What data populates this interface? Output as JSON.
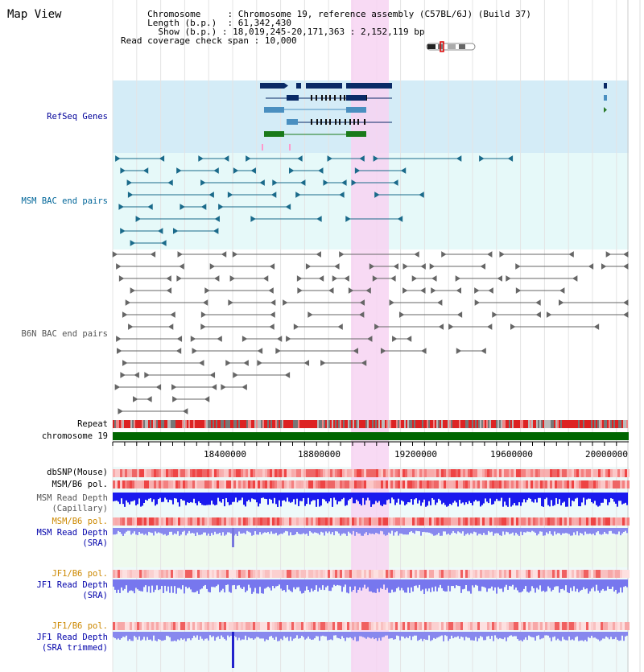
{
  "header": {
    "title": "Map View",
    "chromosome_label": "Chromosome",
    "chromosome_value": "Chromosome 19, reference assembly (C57BL/6J) (Build 37)",
    "length_label": "Length (b.p.)",
    "length_value": "61,342,430",
    "show_label": "Show (b.p.)",
    "show_value": "18,019,245-20,171,363 : 2,152,119 bp",
    "coverage_label": "Read coverage check span",
    "coverage_value": "10,000"
  },
  "tracks": {
    "refseq": "RefSeq Genes",
    "msm_bac": "MSM BAC end pairs",
    "b6n_bac": "B6N BAC end pairs",
    "repeat": "Repeat",
    "chromosome": "chromosome 19",
    "dbsnp": "dbSNP(Mouse)",
    "msm_b6_pol": "MSM/B6 pol.",
    "msm_read_depth_cap": "MSM Read Depth",
    "msm_read_depth_cap_sub": "(Capillary)",
    "msm_b6_pol_2": "MSM/B6 pol.",
    "msm_read_depth_sra": "MSM Read Depth",
    "msm_read_depth_sra_sub": "(SRA)",
    "jf1_b6_pol": "JF1/B6 pol.",
    "jf1_read_depth_sra": "JF1 Read Depth",
    "jf1_read_depth_sra_sub": "(SRA)",
    "jf1_b6_pol_2": "JF1/B6 pol.",
    "jf1_read_depth_trim": "JF1 Read Depth",
    "jf1_read_depth_trim_sub": "(SRA trimmed)"
  },
  "axis": {
    "ticks": [
      "18400000",
      "18800000",
      "19200000",
      "19600000",
      "20000000"
    ]
  },
  "colors": {
    "highlight": "#f7d4f2",
    "refseq_bg": "#d4ecf7",
    "msm_bg": "#e4f8f8",
    "b6n_bg": "#ffffff",
    "chromosome_bar": "#006600",
    "depth_blue": "#1a1aee",
    "depth_light": "#7777ee"
  }
}
